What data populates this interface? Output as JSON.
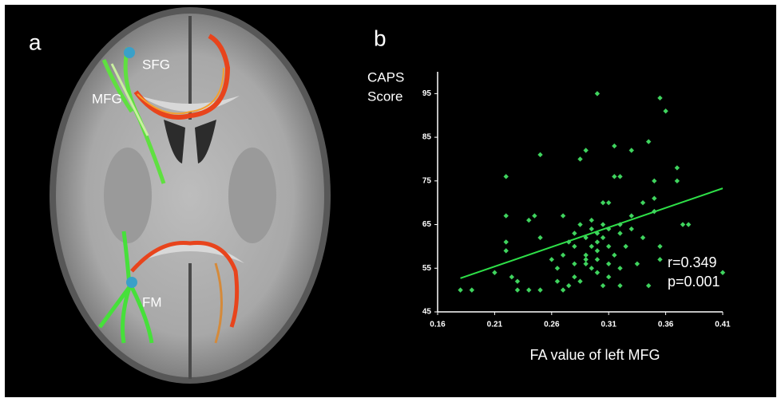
{
  "panel_a": {
    "label": "a",
    "annotations": [
      "SFG",
      "MFG",
      "FM"
    ]
  },
  "chart_data": {
    "type": "scatter",
    "panel_label": "b",
    "ylabel": [
      "CAPS",
      "Score"
    ],
    "xlabel": "FA value of left MFG",
    "annotations": [
      "r=0.349",
      "p=0.001"
    ],
    "color": "#3fd45e",
    "line_color": "#2ee048",
    "x": [
      0.18,
      0.19,
      0.21,
      0.22,
      0.22,
      0.22,
      0.22,
      0.225,
      0.23,
      0.23,
      0.24,
      0.24,
      0.245,
      0.25,
      0.25,
      0.25,
      0.26,
      0.265,
      0.265,
      0.27,
      0.27,
      0.27,
      0.275,
      0.275,
      0.28,
      0.28,
      0.28,
      0.28,
      0.285,
      0.285,
      0.285,
      0.29,
      0.29,
      0.29,
      0.29,
      0.29,
      0.295,
      0.295,
      0.295,
      0.295,
      0.3,
      0.3,
      0.3,
      0.3,
      0.3,
      0.3,
      0.305,
      0.305,
      0.305,
      0.305,
      0.31,
      0.31,
      0.31,
      0.31,
      0.31,
      0.315,
      0.315,
      0.315,
      0.32,
      0.32,
      0.32,
      0.32,
      0.32,
      0.325,
      0.33,
      0.33,
      0.33,
      0.335,
      0.34,
      0.34,
      0.345,
      0.345,
      0.35,
      0.35,
      0.35,
      0.355,
      0.355,
      0.355,
      0.36,
      0.37,
      0.37,
      0.375,
      0.38,
      0.41
    ],
    "values": [
      50,
      50,
      54,
      76,
      67,
      61,
      59,
      53,
      50,
      52,
      50,
      66,
      67,
      50,
      62,
      81,
      57,
      52,
      55,
      67,
      58,
      50,
      51,
      61,
      63,
      56,
      53,
      60,
      80,
      52,
      65,
      82,
      62,
      58,
      56,
      57,
      66,
      64,
      60,
      55,
      95,
      63,
      61,
      59,
      57,
      54,
      70,
      65,
      62,
      51,
      70,
      64,
      60,
      56,
      53,
      76,
      83,
      58,
      76,
      65,
      63,
      55,
      51,
      60,
      67,
      82,
      64,
      56,
      62,
      70,
      84,
      51,
      75,
      71,
      68,
      60,
      57,
      94,
      91,
      78,
      75,
      65,
      65,
      54
    ],
    "trend_line": {
      "x": [
        0.18,
        0.41
      ],
      "y": [
        52.7,
        73.3
      ]
    },
    "xlim": [
      0.16,
      0.41
    ],
    "ylim": [
      45,
      100
    ],
    "xticks": [
      0.16,
      0.21,
      0.26,
      0.31,
      0.36,
      0.41
    ],
    "yticks": [
      45,
      55,
      65,
      75,
      85,
      95
    ]
  }
}
